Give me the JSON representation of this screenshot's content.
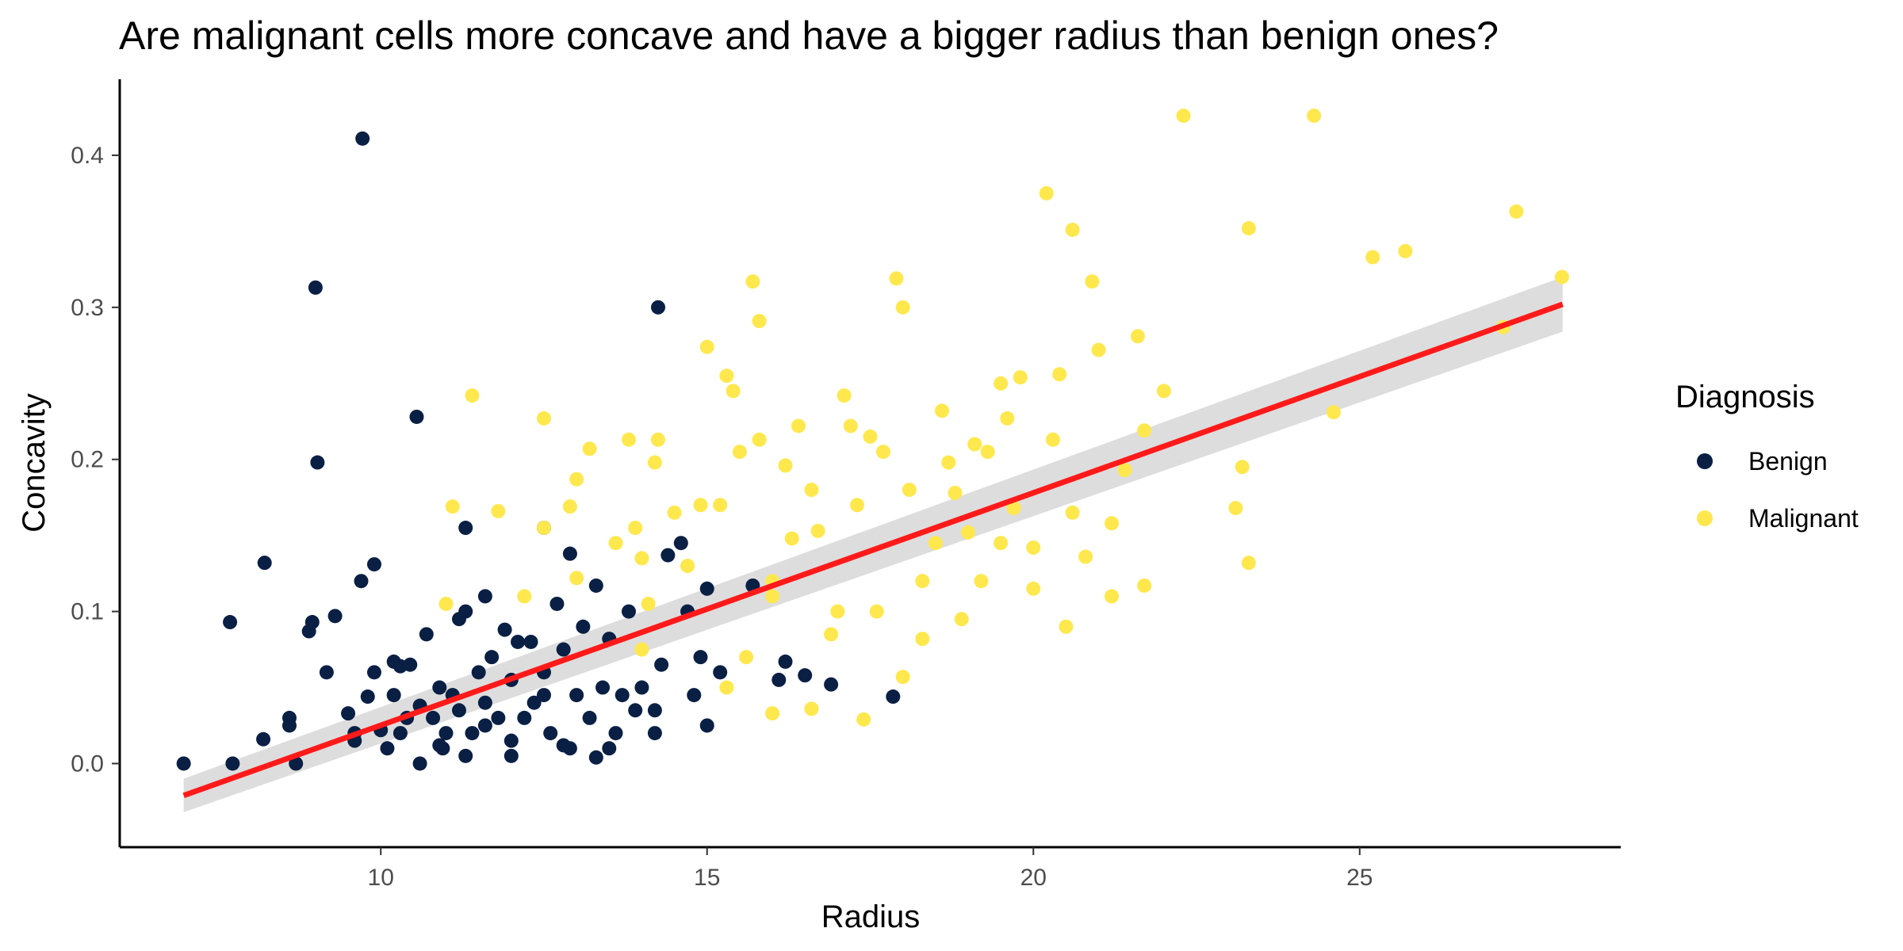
{
  "chart_data": {
    "type": "scatter",
    "title": "Are malignant cells more concave and have a bigger radius than benign ones?",
    "xlabel": "Radius",
    "ylabel": "Concavity",
    "xlim": [
      6.0,
      29.0
    ],
    "ylim": [
      -0.055,
      0.45
    ],
    "x_ticks": [
      "10",
      "15",
      "20",
      "25"
    ],
    "y_ticks": [
      "0.0",
      "0.1",
      "0.2",
      "0.3",
      "0.4"
    ],
    "grid": false,
    "legend": {
      "title": "Diagnosis",
      "position": "right",
      "entries": [
        "Benign",
        "Malignant"
      ]
    },
    "series": [
      {
        "name": "Benign",
        "color": "#0a1f44",
        "points": [
          [
            6.98,
            0.0
          ],
          [
            7.73,
            0.0
          ],
          [
            7.69,
            0.093
          ],
          [
            8.2,
            0.016
          ],
          [
            8.22,
            0.132
          ],
          [
            8.6,
            0.03
          ],
          [
            8.6,
            0.025
          ],
          [
            8.7,
            0.0
          ],
          [
            8.9,
            0.087
          ],
          [
            8.95,
            0.093
          ],
          [
            9.0,
            0.313
          ],
          [
            9.03,
            0.198
          ],
          [
            9.17,
            0.06
          ],
          [
            9.3,
            0.097
          ],
          [
            9.5,
            0.033
          ],
          [
            9.6,
            0.02
          ],
          [
            9.7,
            0.12
          ],
          [
            9.72,
            0.411
          ],
          [
            9.8,
            0.044
          ],
          [
            9.9,
            0.131
          ],
          [
            9.9,
            0.06
          ],
          [
            10.0,
            0.022
          ],
          [
            10.1,
            0.01
          ],
          [
            10.2,
            0.067
          ],
          [
            10.2,
            0.045
          ],
          [
            10.3,
            0.02
          ],
          [
            10.3,
            0.064
          ],
          [
            10.45,
            0.065
          ],
          [
            10.55,
            0.228
          ],
          [
            10.6,
            0.038
          ],
          [
            10.6,
            0.0
          ],
          [
            10.7,
            0.085
          ],
          [
            10.8,
            0.03
          ],
          [
            10.9,
            0.05
          ],
          [
            10.95,
            0.01
          ],
          [
            11.1,
            0.045
          ],
          [
            11.2,
            0.095
          ],
          [
            11.3,
            0.155
          ],
          [
            11.3,
            0.1
          ],
          [
            11.4,
            0.02
          ],
          [
            11.5,
            0.06
          ],
          [
            11.6,
            0.04
          ],
          [
            11.6,
            0.11
          ],
          [
            11.7,
            0.07
          ],
          [
            11.8,
            0.03
          ],
          [
            11.9,
            0.088
          ],
          [
            12.0,
            0.015
          ],
          [
            12.0,
            0.055
          ],
          [
            12.1,
            0.08
          ],
          [
            12.2,
            0.03
          ],
          [
            12.3,
            0.08
          ],
          [
            12.35,
            0.04
          ],
          [
            12.5,
            0.155
          ],
          [
            12.5,
            0.06
          ],
          [
            12.6,
            0.02
          ],
          [
            12.7,
            0.105
          ],
          [
            12.8,
            0.075
          ],
          [
            12.9,
            0.138
          ],
          [
            12.9,
            0.01
          ],
          [
            13.0,
            0.045
          ],
          [
            13.1,
            0.09
          ],
          [
            13.2,
            0.03
          ],
          [
            13.3,
            0.117
          ],
          [
            13.4,
            0.05
          ],
          [
            13.5,
            0.082
          ],
          [
            13.6,
            0.02
          ],
          [
            13.7,
            0.045
          ],
          [
            13.8,
            0.1
          ],
          [
            13.9,
            0.035
          ],
          [
            14.0,
            0.05
          ],
          [
            14.2,
            0.02
          ],
          [
            14.25,
            0.3
          ],
          [
            14.3,
            0.065
          ],
          [
            14.4,
            0.137
          ],
          [
            14.6,
            0.145
          ],
          [
            14.7,
            0.1
          ],
          [
            14.8,
            0.045
          ],
          [
            14.9,
            0.07
          ],
          [
            15.0,
            0.115
          ],
          [
            15.0,
            0.025
          ],
          [
            15.2,
            0.06
          ],
          [
            15.7,
            0.117
          ],
          [
            16.1,
            0.055
          ],
          [
            16.2,
            0.067
          ],
          [
            16.5,
            0.058
          ],
          [
            16.9,
            0.052
          ],
          [
            17.85,
            0.044
          ],
          [
            11.0,
            0.02
          ],
          [
            11.3,
            0.005
          ],
          [
            12.8,
            0.012
          ],
          [
            13.3,
            0.004
          ],
          [
            10.9,
            0.012
          ],
          [
            12.0,
            0.005
          ],
          [
            11.6,
            0.025
          ],
          [
            13.5,
            0.01
          ],
          [
            14.2,
            0.035
          ],
          [
            12.5,
            0.045
          ],
          [
            11.2,
            0.035
          ],
          [
            10.4,
            0.03
          ],
          [
            9.6,
            0.015
          ]
        ]
      },
      {
        "name": "Malignant",
        "color": "#ffe84d",
        "points": [
          [
            11.0,
            0.105
          ],
          [
            11.1,
            0.169
          ],
          [
            11.4,
            0.242
          ],
          [
            11.8,
            0.166
          ],
          [
            12.5,
            0.227
          ],
          [
            12.5,
            0.155
          ],
          [
            12.9,
            0.169
          ],
          [
            13.0,
            0.187
          ],
          [
            13.2,
            0.207
          ],
          [
            13.6,
            0.145
          ],
          [
            13.8,
            0.213
          ],
          [
            13.9,
            0.155
          ],
          [
            14.0,
            0.135
          ],
          [
            14.1,
            0.105
          ],
          [
            14.25,
            0.213
          ],
          [
            14.2,
            0.198
          ],
          [
            14.5,
            0.165
          ],
          [
            14.7,
            0.13
          ],
          [
            14.9,
            0.17
          ],
          [
            15.0,
            0.274
          ],
          [
            15.2,
            0.17
          ],
          [
            15.3,
            0.255
          ],
          [
            15.4,
            0.245
          ],
          [
            15.5,
            0.205
          ],
          [
            15.7,
            0.317
          ],
          [
            15.8,
            0.291
          ],
          [
            15.8,
            0.213
          ],
          [
            16.0,
            0.11
          ],
          [
            16.2,
            0.196
          ],
          [
            16.3,
            0.148
          ],
          [
            16.4,
            0.222
          ],
          [
            16.6,
            0.18
          ],
          [
            16.7,
            0.153
          ],
          [
            16.9,
            0.085
          ],
          [
            17.1,
            0.242
          ],
          [
            17.2,
            0.222
          ],
          [
            17.3,
            0.17
          ],
          [
            17.5,
            0.215
          ],
          [
            17.7,
            0.205
          ],
          [
            17.9,
            0.319
          ],
          [
            18.0,
            0.3
          ],
          [
            18.1,
            0.18
          ],
          [
            18.3,
            0.12
          ],
          [
            18.6,
            0.232
          ],
          [
            18.7,
            0.198
          ],
          [
            19.0,
            0.152
          ],
          [
            19.1,
            0.21
          ],
          [
            19.3,
            0.205
          ],
          [
            19.5,
            0.25
          ],
          [
            19.6,
            0.227
          ],
          [
            19.8,
            0.254
          ],
          [
            20.0,
            0.142
          ],
          [
            20.2,
            0.375
          ],
          [
            20.3,
            0.213
          ],
          [
            20.4,
            0.256
          ],
          [
            20.6,
            0.351
          ],
          [
            20.8,
            0.136
          ],
          [
            20.9,
            0.317
          ],
          [
            21.0,
            0.272
          ],
          [
            21.2,
            0.158
          ],
          [
            21.4,
            0.193
          ],
          [
            21.6,
            0.281
          ],
          [
            21.7,
            0.219
          ],
          [
            22.0,
            0.245
          ],
          [
            22.3,
            0.426
          ],
          [
            23.1,
            0.168
          ],
          [
            23.2,
            0.195
          ],
          [
            23.3,
            0.352
          ],
          [
            23.3,
            0.132
          ],
          [
            24.3,
            0.426
          ],
          [
            24.6,
            0.231
          ],
          [
            25.2,
            0.333
          ],
          [
            25.7,
            0.337
          ],
          [
            27.2,
            0.287
          ],
          [
            27.4,
            0.363
          ],
          [
            28.1,
            0.32
          ],
          [
            15.6,
            0.07
          ],
          [
            16.0,
            0.033
          ],
          [
            16.6,
            0.036
          ],
          [
            17.4,
            0.029
          ],
          [
            18.0,
            0.057
          ],
          [
            18.3,
            0.082
          ],
          [
            18.9,
            0.095
          ],
          [
            19.2,
            0.12
          ],
          [
            20.5,
            0.09
          ],
          [
            21.2,
            0.11
          ],
          [
            21.7,
            0.117
          ],
          [
            20.0,
            0.115
          ],
          [
            19.5,
            0.145
          ],
          [
            18.5,
            0.145
          ],
          [
            17.0,
            0.1
          ],
          [
            16.0,
            0.12
          ],
          [
            15.3,
            0.05
          ],
          [
            14.0,
            0.075
          ],
          [
            13.0,
            0.122
          ],
          [
            12.2,
            0.11
          ],
          [
            17.6,
            0.1
          ],
          [
            18.8,
            0.178
          ],
          [
            19.7,
            0.168
          ],
          [
            20.6,
            0.165
          ]
        ]
      }
    ],
    "fit": {
      "type": "linear",
      "color": "#ff1a1a",
      "band_color": "#d9d9d9",
      "x": [
        6.98,
        28.11
      ],
      "y": [
        -0.021,
        0.302
      ],
      "se": [
        0.011,
        0.018
      ]
    }
  }
}
